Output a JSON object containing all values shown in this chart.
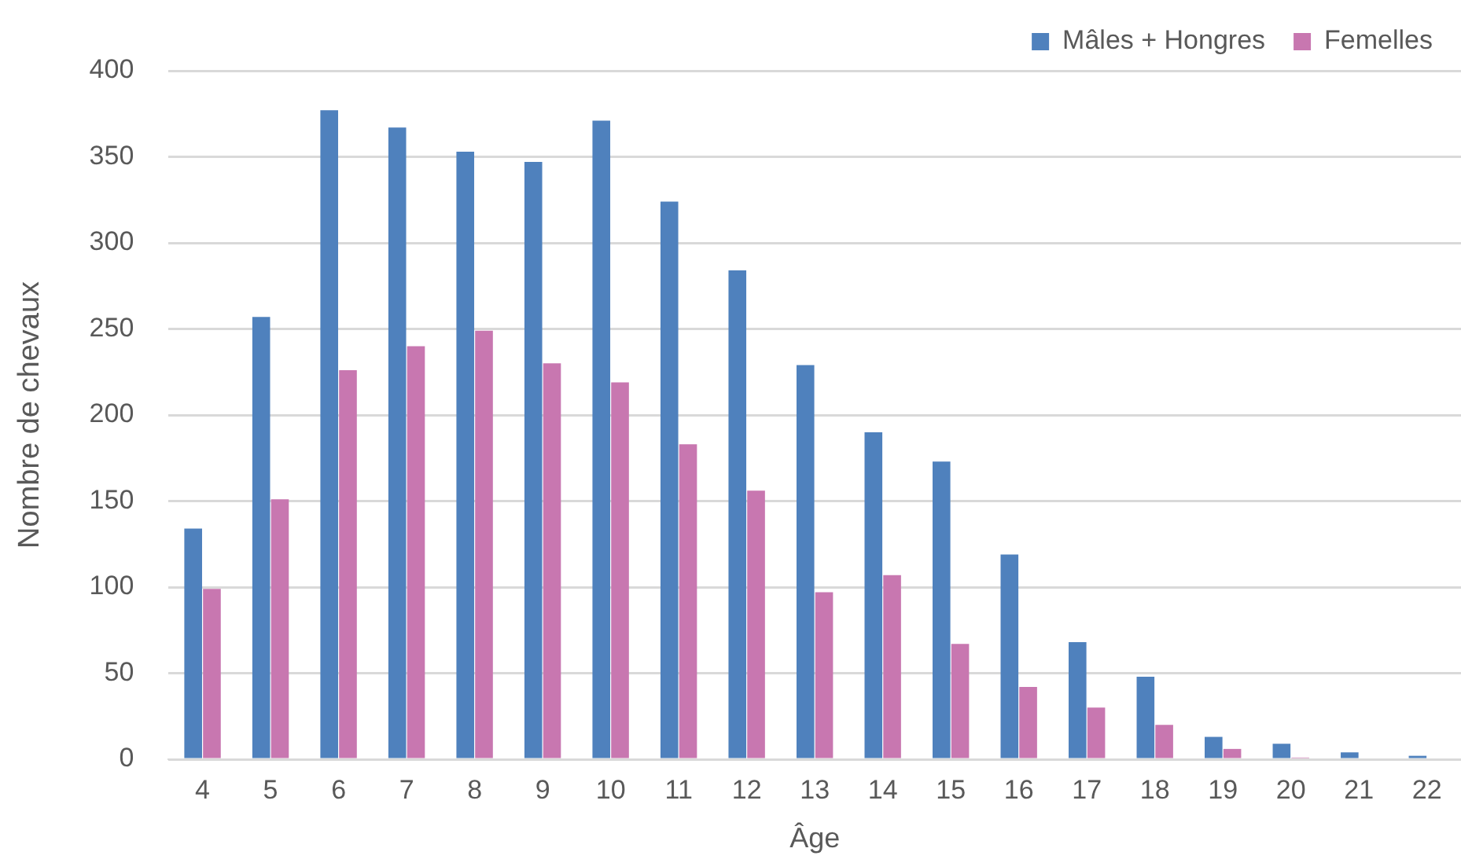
{
  "chart_data": {
    "type": "bar",
    "xlabel": "Âge",
    "ylabel": "Nombre de chevaux",
    "categories": [
      "4",
      "5",
      "6",
      "7",
      "8",
      "9",
      "10",
      "11",
      "12",
      "13",
      "14",
      "15",
      "16",
      "17",
      "18",
      "19",
      "20",
      "21",
      "22"
    ],
    "series": [
      {
        "name": "Mâles + Hongres",
        "color": "#4f81bd",
        "values": [
          134,
          257,
          377,
          367,
          353,
          347,
          371,
          324,
          284,
          229,
          190,
          173,
          119,
          68,
          48,
          13,
          9,
          4,
          2
        ]
      },
      {
        "name": "Femelles",
        "color": "#c877b0",
        "values": [
          99,
          151,
          226,
          240,
          249,
          230,
          219,
          183,
          156,
          97,
          107,
          67,
          42,
          30,
          20,
          6,
          1,
          0,
          0
        ]
      }
    ],
    "ylim": [
      0,
      400
    ],
    "yticks": [
      0,
      50,
      100,
      150,
      200,
      250,
      300,
      350,
      400
    ],
    "grid": "y",
    "legend": "top right"
  }
}
